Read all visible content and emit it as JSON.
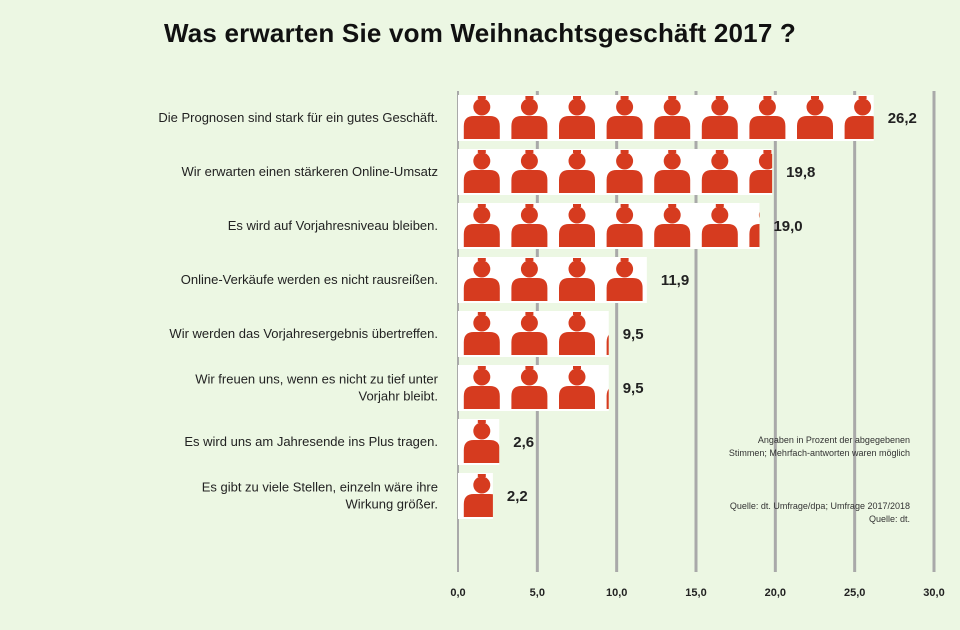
{
  "chart_data": {
    "type": "bar",
    "orientation": "horizontal",
    "title": "Was erwarten Sie vom Weihnachtsgeschäft 2017 ?",
    "categories": [
      "Die Prognosen sind stark für ein gutes Geschäft.",
      "Wir erwarten einen stärkeren Online-Umsatz",
      "Es wird auf Vorjahresniveau bleiben.",
      "Online-Verkäufe werden es nicht rausreißen.",
      "Wir werden das Vorjahresergebnis übertreffen.",
      "Wir freuen uns, wenn es nicht zu tief unter Vorjahr bleibt.",
      "Es wird uns am Jahresende ins Plus tragen.",
      "Es gibt zu viele Stellen, einzeln wäre ihre Wirkung größer."
    ],
    "values": [
      26.2,
      19.8,
      19.0,
      11.9,
      9.5,
      9.5,
      2.6,
      2.2
    ],
    "value_labels": [
      "26,2",
      "19,8",
      "19,0",
      "11,9",
      "9,5",
      "9,5",
      "2,6",
      "2,2"
    ],
    "xlim": [
      0,
      30
    ],
    "x_ticks": [
      "0,0",
      "5,0",
      "10,0",
      "15,0",
      "20,0",
      "25,0",
      "30,0"
    ],
    "grid": "vertical",
    "xlabel": "",
    "ylabel": "",
    "icon": "person-icon",
    "icon_unit": 3,
    "colors": {
      "icon": "#d63b1f",
      "bar_bg": "#ffffff",
      "grid": "#a9a9a9",
      "background": "#ecf7e3"
    },
    "notes": [
      "Angaben in Prozent der abgegebenen Stimmen; Mehrfach-antworten waren möglich",
      "Quelle: dt. Umfrage/dpa; Umfrage 2017/2018 Quelle: dt."
    ]
  }
}
